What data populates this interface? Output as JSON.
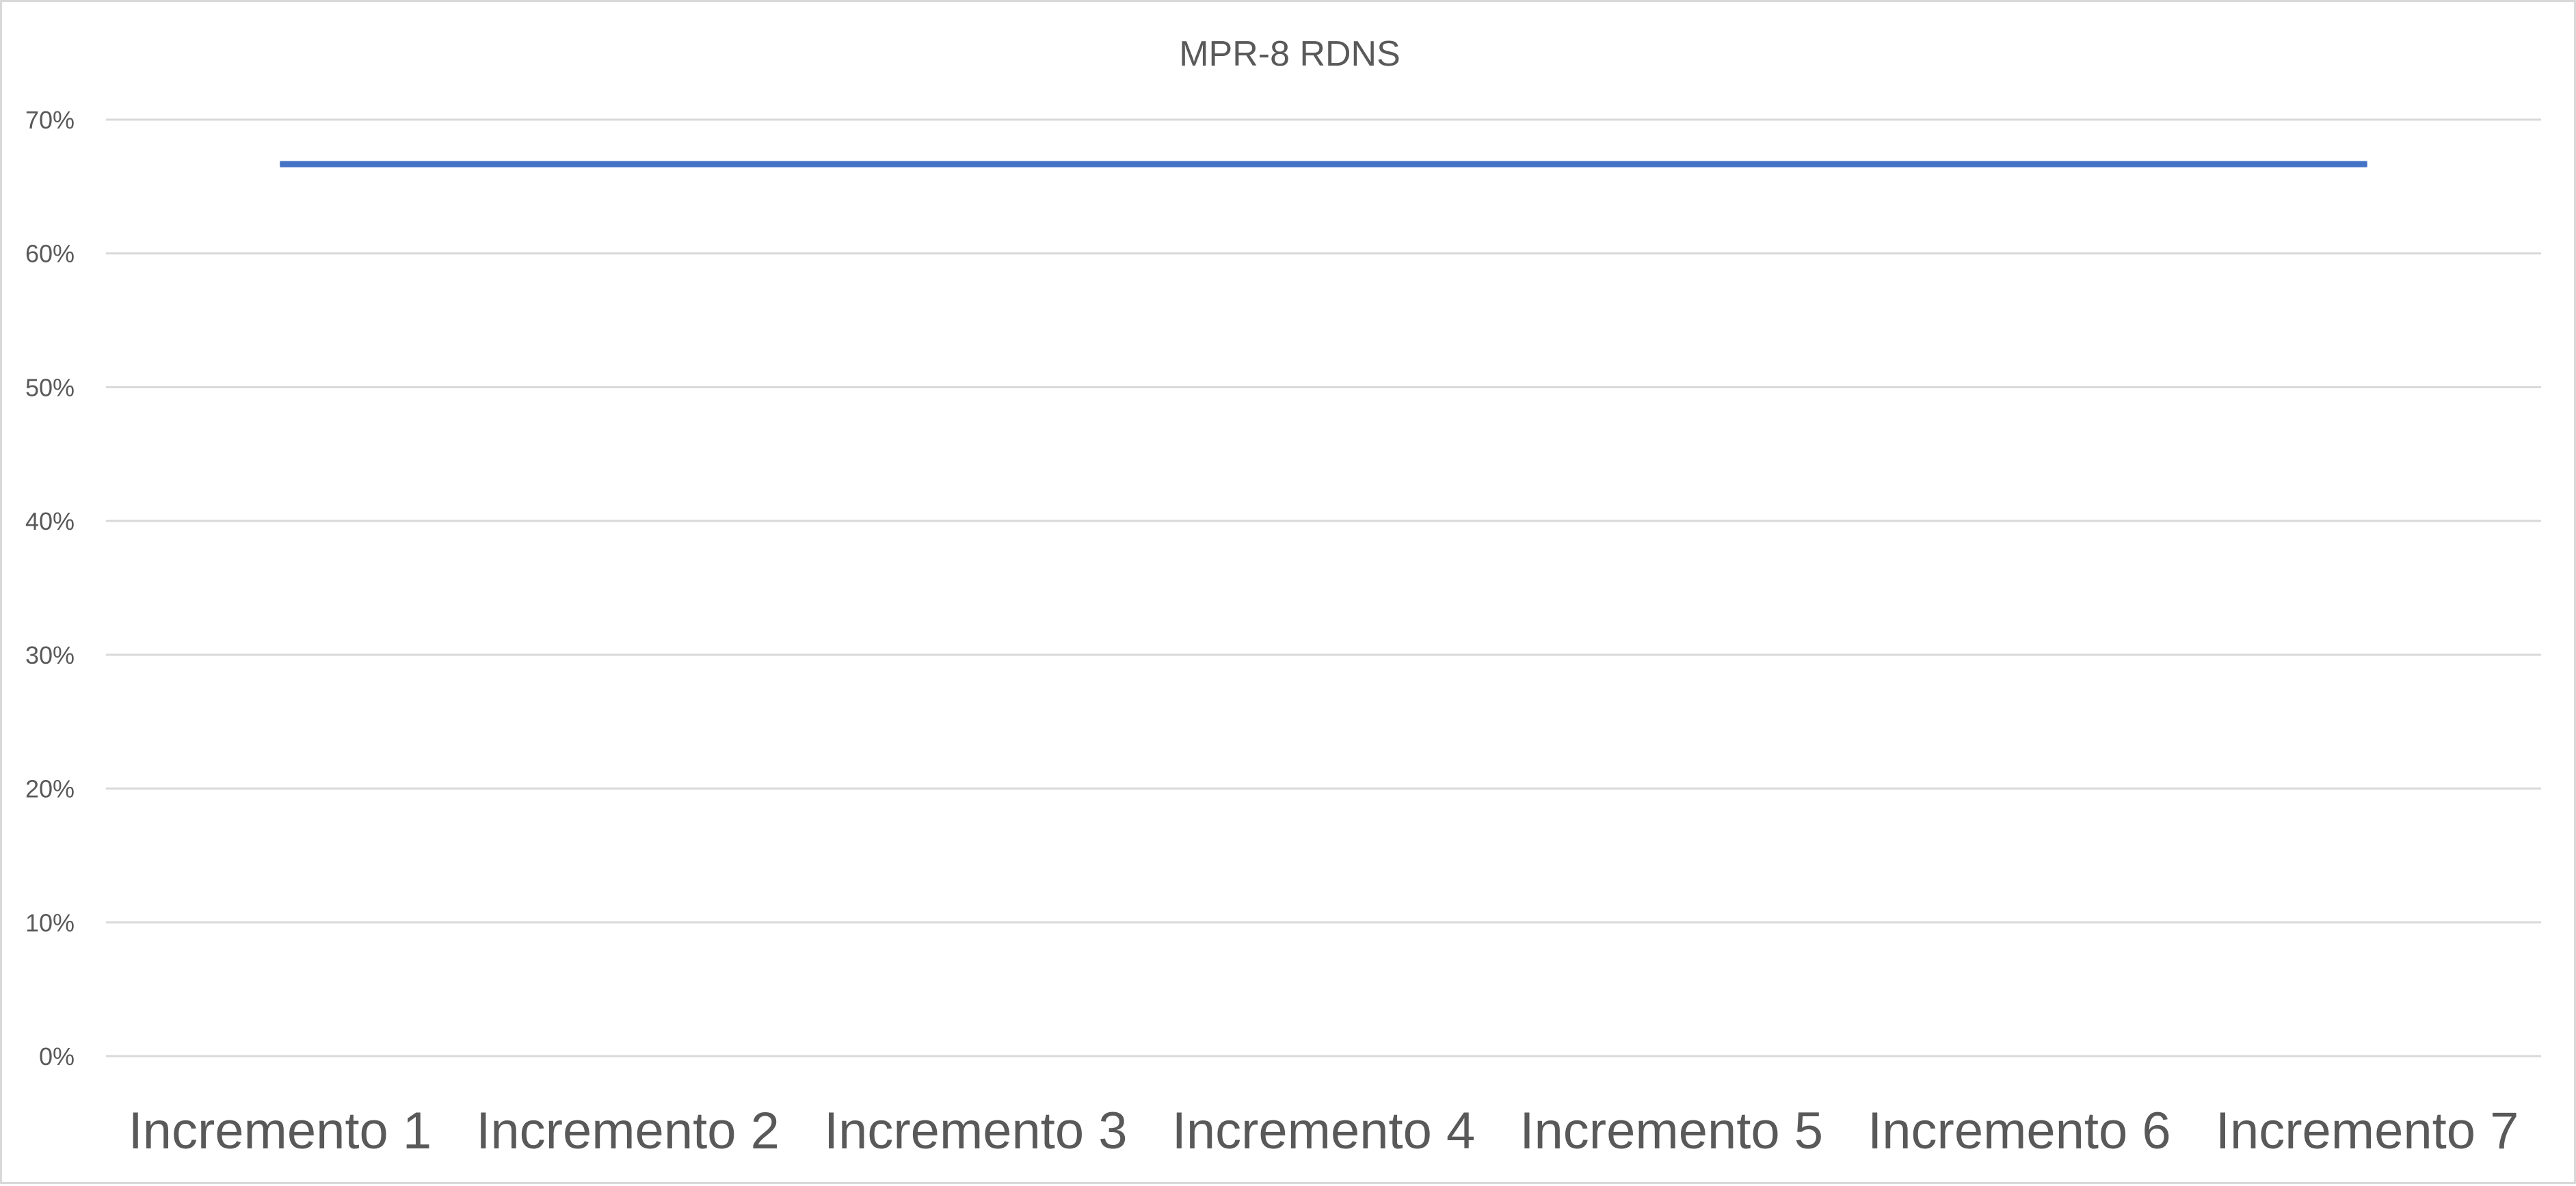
{
  "chart_data": {
    "type": "line",
    "title": "MPR-8 RDNS",
    "xlabel": "",
    "ylabel": "",
    "categories": [
      "Incremento 1",
      "Incremento 2",
      "Incremento 3",
      "Incremento 4",
      "Incremento 5",
      "Incremento 6",
      "Incremento 7"
    ],
    "series": [
      {
        "values": [
          0.6667,
          0.6667,
          0.6667,
          0.6667,
          0.6667,
          0.6667,
          0.6667
        ],
        "color": "#4472c4"
      }
    ],
    "ylim": [
      0,
      0.7
    ],
    "yticks": [
      0,
      0.1,
      0.2,
      0.3,
      0.4,
      0.5,
      0.6,
      0.7
    ],
    "ytick_labels": [
      "0%",
      "10%",
      "20%",
      "30%",
      "40%",
      "50%",
      "60%",
      "70%"
    ],
    "grid": true,
    "legend": "none",
    "colors": {
      "gridline": "#d9d9d9",
      "text": "#595959",
      "border": "#d9d9d9"
    }
  }
}
